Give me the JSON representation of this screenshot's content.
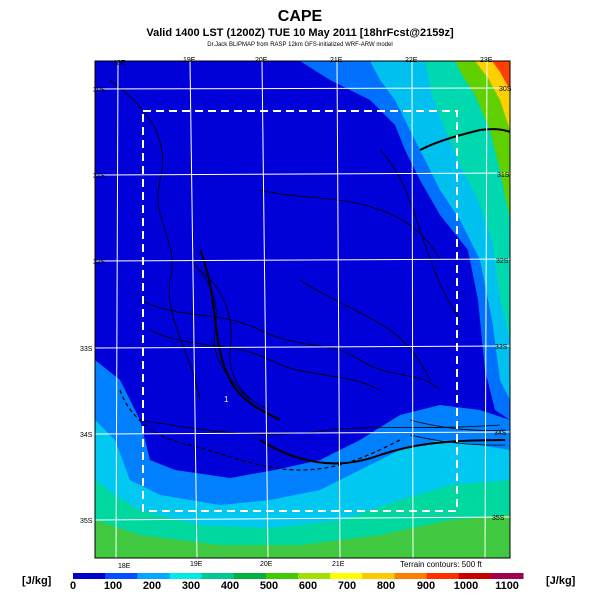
{
  "header": {
    "title": "CAPE",
    "subtitle": "Valid 1400 LST (1200Z) TUE 10 May 2011 [18hrFcst@2159z]",
    "credit": "Dr.Jack BLIPMAP from RASP 12km GFS-initialized WRF-ARW model"
  },
  "map": {
    "top_lon_labels": [
      "18E",
      "19E",
      "20E",
      "21E",
      "22E",
      "23E"
    ],
    "bottom_lon_labels": [
      "18E",
      "19E",
      "20E",
      "21E"
    ],
    "left_lat_labels": [
      "30S",
      "31S",
      "32S",
      "33S",
      "34S",
      "35S"
    ],
    "right_lat_labels": [
      "30S",
      "31S",
      "32S",
      "33S",
      "34S",
      "35S"
    ],
    "marker_label": "1",
    "terrain_note": "Terrain contours: 500 ft"
  },
  "colorbar": {
    "unit_left": "[J/kg]",
    "unit_right": "[J/kg]",
    "labels": [
      "0",
      "100",
      "200",
      "300",
      "400",
      "500",
      "600",
      "700",
      "800",
      "900",
      "1000",
      "1100"
    ],
    "colors": [
      "#0000cc",
      "#0050ff",
      "#00a8ff",
      "#00e8e8",
      "#00c890",
      "#00b040",
      "#40c800",
      "#a0e000",
      "#ffff00",
      "#ffc800",
      "#ff8000",
      "#ff3000",
      "#c80000",
      "#a00050"
    ]
  }
}
